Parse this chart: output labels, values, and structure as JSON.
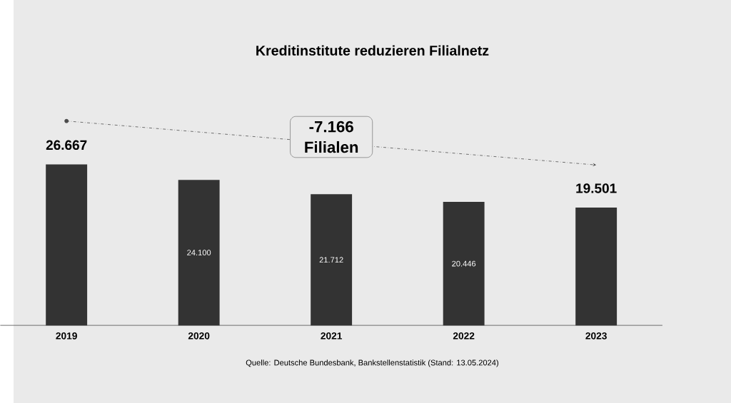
{
  "chart_data": {
    "type": "bar",
    "title": "Kreditinstitute reduzieren Filialnetz",
    "categories": [
      "2019",
      "2020",
      "2021",
      "2022",
      "2023"
    ],
    "values": [
      26667,
      24100,
      21712,
      20446,
      19501
    ],
    "value_labels": [
      "26.667",
      "24.100",
      "21.712",
      "20.446",
      "19.501"
    ],
    "color": "#333333",
    "annotations": [
      "-7.166 Filialen",
      "Quelle: Deutsche Bundesbank, Bankstellenstatistik (Stand: 13.05.2024)"
    ]
  }
}
